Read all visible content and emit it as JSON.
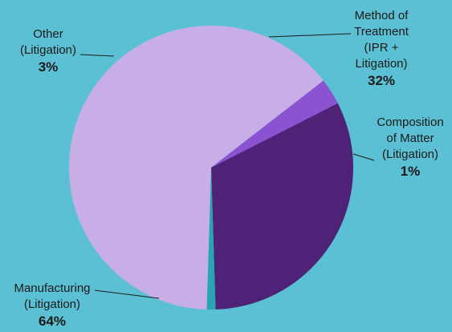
{
  "chart_data": {
    "type": "pie",
    "title": "",
    "slices": [
      {
        "name": "Method of Treatment (IPR + Litigation)",
        "lines": [
          "Method of",
          "Treatment",
          "(IPR +",
          "Litigation)"
        ],
        "pct_label": "32%",
        "value": 32,
        "color": "#4e2277"
      },
      {
        "name": "Composition of Matter (Litigation)",
        "lines": [
          "Composition",
          "of Matter",
          "(Litigation)"
        ],
        "pct_label": "1%",
        "value": 1,
        "color": "#2aa3b5"
      },
      {
        "name": "Manufacturing (Litigation)",
        "lines": [
          "Manufacturing",
          "(Litigation)"
        ],
        "pct_label": "64%",
        "value": 64,
        "color": "#c8aee6"
      },
      {
        "name": "Other (Litigation)",
        "lines": [
          "Other",
          "(Litigation)"
        ],
        "pct_label": "3%",
        "value": 3,
        "color": "#8b52d1"
      }
    ],
    "start_angle_deg": -27,
    "direction": "clockwise"
  }
}
